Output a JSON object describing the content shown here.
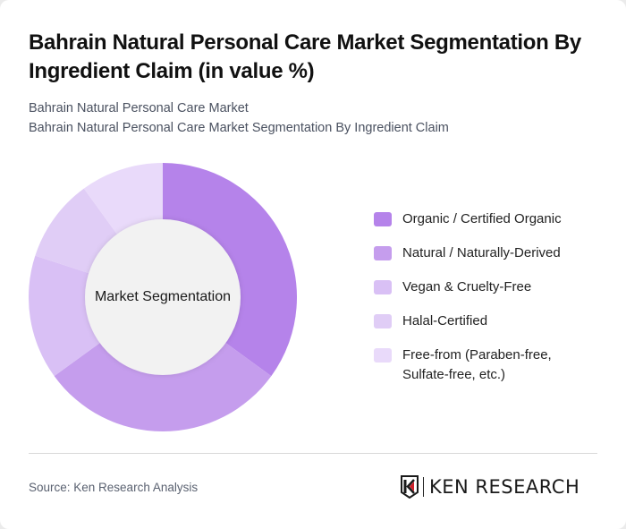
{
  "header": {
    "title": "Bahrain Natural Personal Care Market Segmentation By Ingredient Claim (in value %)",
    "subtitle_1": "Bahrain Natural Personal Care Market",
    "subtitle_2": "Bahrain Natural Personal Care Market Segmentation By Ingredient Claim"
  },
  "chart": {
    "center_label": "Market Segmentation"
  },
  "legend": {
    "items": [
      {
        "label": "Organic / Certified Organic",
        "color": "#b583ea"
      },
      {
        "label": "Natural / Naturally-Derived",
        "color": "#c59ded"
      },
      {
        "label": "Vegan & Cruelty-Free",
        "color": "#d9c0f5"
      },
      {
        "label": "Halal-Certified",
        "color": "#e0cdf6"
      },
      {
        "label": "Free-from (Paraben-free, Sulfate-free, etc.)",
        "color": "#e9dafa"
      }
    ]
  },
  "footer": {
    "source": "Source: Ken Research Analysis",
    "logo_text": "KEN RESEARCH"
  },
  "chart_data": {
    "type": "pie",
    "title": "Bahrain Natural Personal Care Market Segmentation By Ingredient Claim (in value %)",
    "subtitle": "Bahrain Natural Personal Care Market Segmentation By Ingredient Claim",
    "center_label": "Market Segmentation",
    "donut": true,
    "categories": [
      "Organic / Certified Organic",
      "Natural / Naturally-Derived",
      "Vegan & Cruelty-Free",
      "Halal-Certified",
      "Free-from (Paraben-free, Sulfate-free, etc.)"
    ],
    "values": [
      35,
      30,
      15,
      10,
      10
    ],
    "colors": [
      "#b583ea",
      "#c59ded",
      "#d9c0f5",
      "#e0cdf6",
      "#e9dafa"
    ],
    "legend_position": "right",
    "unit": "%"
  }
}
